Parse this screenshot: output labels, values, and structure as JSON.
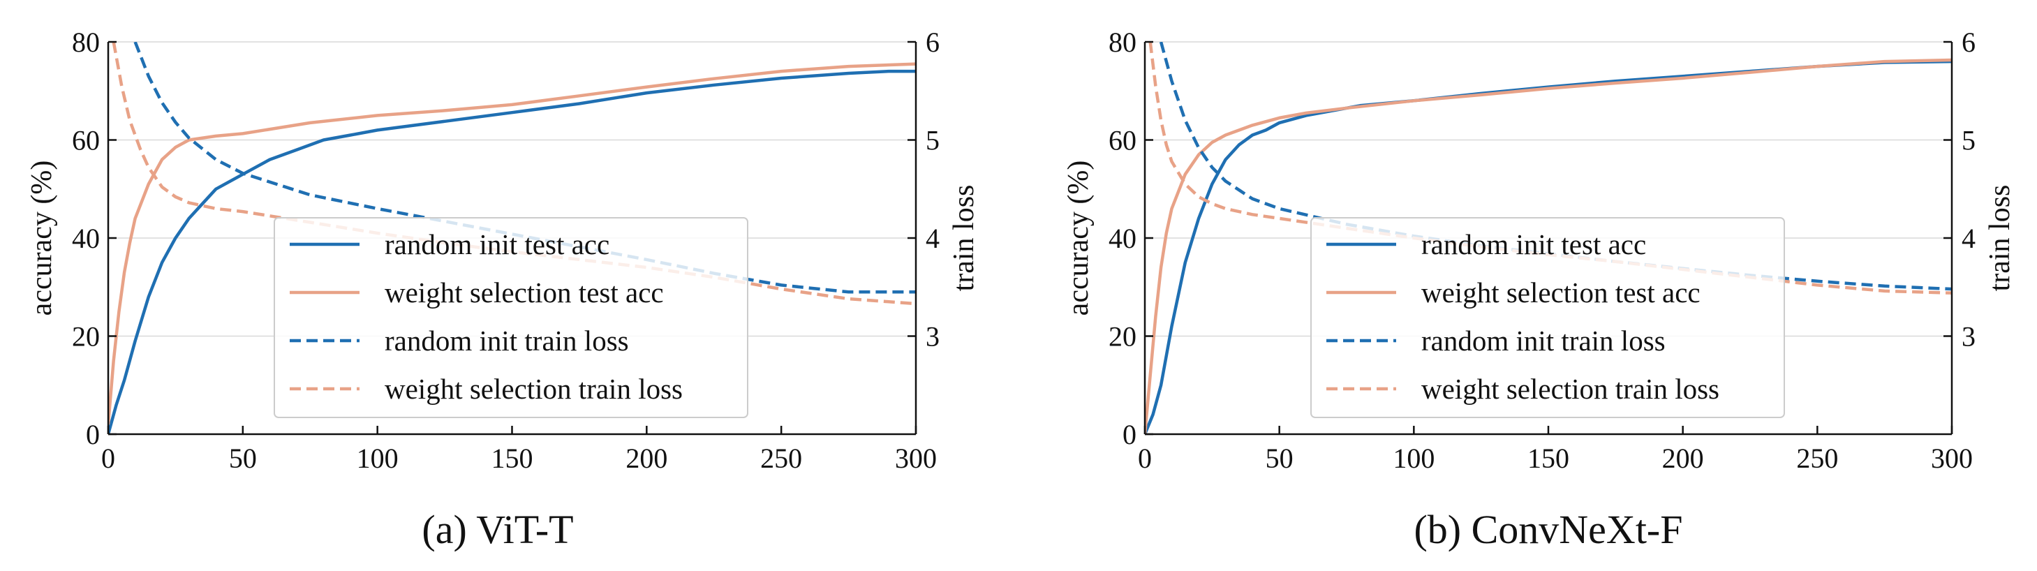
{
  "chart_data": [
    {
      "type": "line",
      "caption": "(a) ViT-T",
      "xlabel": "",
      "ylabel": "accuracy (%)",
      "y2label": "train loss",
      "xlim": [
        0,
        300
      ],
      "ylim": [
        0,
        80
      ],
      "y2lim": [
        2,
        6
      ],
      "xticks": [
        0,
        50,
        100,
        150,
        200,
        250,
        300
      ],
      "yticks": [
        0,
        20,
        40,
        60,
        80
      ],
      "y2ticks": [
        3,
        4,
        5,
        6
      ],
      "grid": "horizontal",
      "legend_position": "lower-center",
      "series": [
        {
          "name": "random init test acc",
          "axis": "left",
          "style": "solid",
          "color": "#1f6fb2",
          "x": [
            0,
            3,
            6,
            10,
            15,
            20,
            25,
            30,
            35,
            40,
            50,
            60,
            70,
            80,
            90,
            100,
            125,
            150,
            175,
            200,
            225,
            250,
            275,
            290,
            300
          ],
          "y": [
            0,
            6,
            11,
            19,
            28,
            35,
            40,
            44,
            47,
            50,
            53,
            56,
            58,
            60,
            61,
            62,
            63.8,
            65.6,
            67.4,
            69.6,
            71.2,
            72.6,
            73.6,
            74,
            74
          ]
        },
        {
          "name": "weight selection test acc",
          "axis": "left",
          "style": "solid",
          "color": "#e8a287",
          "x": [
            0,
            2,
            4,
            6,
            8,
            10,
            15,
            20,
            25,
            30,
            40,
            50,
            75,
            100,
            125,
            150,
            175,
            200,
            225,
            250,
            275,
            300
          ],
          "y": [
            2,
            15,
            25,
            33,
            39,
            44,
            51,
            56,
            58.5,
            60,
            60.8,
            61.3,
            63.5,
            65,
            66,
            67.2,
            69,
            70.8,
            72.5,
            74,
            75,
            75.5
          ]
        },
        {
          "name": "random init train loss",
          "axis": "right",
          "style": "dashed",
          "color": "#1f6fb2",
          "x": [
            10,
            15,
            20,
            25,
            30,
            40,
            50,
            75,
            100,
            125,
            150,
            175,
            200,
            225,
            250,
            275,
            300
          ],
          "y": [
            6.0,
            5.65,
            5.38,
            5.18,
            5.02,
            4.8,
            4.66,
            4.44,
            4.3,
            4.17,
            4.04,
            3.91,
            3.78,
            3.64,
            3.52,
            3.45,
            3.45
          ]
        },
        {
          "name": "weight selection train loss",
          "axis": "right",
          "style": "dashed",
          "color": "#e8a287",
          "x": [
            2,
            5,
            8,
            12,
            15,
            20,
            25,
            30,
            40,
            50,
            75,
            100,
            125,
            150,
            175,
            200,
            225,
            250,
            275,
            300
          ],
          "y": [
            6.0,
            5.55,
            5.2,
            4.9,
            4.72,
            4.52,
            4.42,
            4.36,
            4.3,
            4.27,
            4.16,
            4.05,
            3.95,
            3.86,
            3.78,
            3.7,
            3.6,
            3.48,
            3.38,
            3.33
          ]
        }
      ]
    },
    {
      "type": "line",
      "caption": "(b) ConvNeXt-F",
      "xlabel": "",
      "ylabel": "accuracy (%)",
      "y2label": "train loss",
      "xlim": [
        0,
        300
      ],
      "ylim": [
        0,
        80
      ],
      "y2lim": [
        2,
        6
      ],
      "xticks": [
        0,
        50,
        100,
        150,
        200,
        250,
        300
      ],
      "yticks": [
        0,
        20,
        40,
        60,
        80
      ],
      "y2ticks": [
        3,
        4,
        5,
        6
      ],
      "grid": "horizontal",
      "legend_position": "lower-center",
      "series": [
        {
          "name": "random init test acc",
          "axis": "left",
          "style": "solid",
          "color": "#1f6fb2",
          "x": [
            0,
            3,
            6,
            10,
            15,
            20,
            25,
            30,
            35,
            40,
            45,
            50,
            60,
            70,
            80,
            90,
            100,
            125,
            150,
            175,
            200,
            225,
            250,
            275,
            300
          ],
          "y": [
            0,
            4,
            10,
            22,
            35,
            44,
            51,
            56,
            59,
            61,
            62,
            63.5,
            65,
            66,
            67,
            67.5,
            68,
            69.5,
            70.8,
            72,
            73,
            74,
            75,
            75.8,
            76
          ]
        },
        {
          "name": "weight selection test acc",
          "axis": "left",
          "style": "solid",
          "color": "#e8a287",
          "x": [
            0,
            2,
            4,
            6,
            8,
            10,
            15,
            20,
            25,
            30,
            40,
            50,
            60,
            75,
            100,
            125,
            150,
            175,
            200,
            225,
            250,
            275,
            300
          ],
          "y": [
            0,
            12,
            24,
            34,
            41,
            46,
            53,
            57,
            59.5,
            61,
            63,
            64.5,
            65.5,
            66.5,
            68,
            69.2,
            70.5,
            71.6,
            72.6,
            73.8,
            75,
            76,
            76.3
          ]
        },
        {
          "name": "random init train loss",
          "axis": "right",
          "style": "dashed",
          "color": "#1f6fb2",
          "x": [
            6,
            10,
            15,
            20,
            25,
            30,
            40,
            50,
            75,
            100,
            125,
            150,
            175,
            200,
            225,
            250,
            275,
            300
          ],
          "y": [
            6.0,
            5.6,
            5.2,
            4.92,
            4.72,
            4.58,
            4.4,
            4.3,
            4.14,
            4.02,
            3.92,
            3.84,
            3.76,
            3.69,
            3.62,
            3.56,
            3.51,
            3.48
          ]
        },
        {
          "name": "weight selection train loss",
          "axis": "right",
          "style": "dashed",
          "color": "#e8a287",
          "x": [
            2,
            4,
            6,
            8,
            10,
            15,
            20,
            25,
            30,
            40,
            50,
            75,
            100,
            125,
            150,
            175,
            200,
            225,
            250,
            275,
            300
          ],
          "y": [
            6.0,
            5.55,
            5.2,
            4.95,
            4.78,
            4.55,
            4.42,
            4.35,
            4.3,
            4.24,
            4.2,
            4.1,
            4.0,
            3.91,
            3.83,
            3.76,
            3.68,
            3.6,
            3.52,
            3.46,
            3.44
          ]
        }
      ]
    }
  ]
}
